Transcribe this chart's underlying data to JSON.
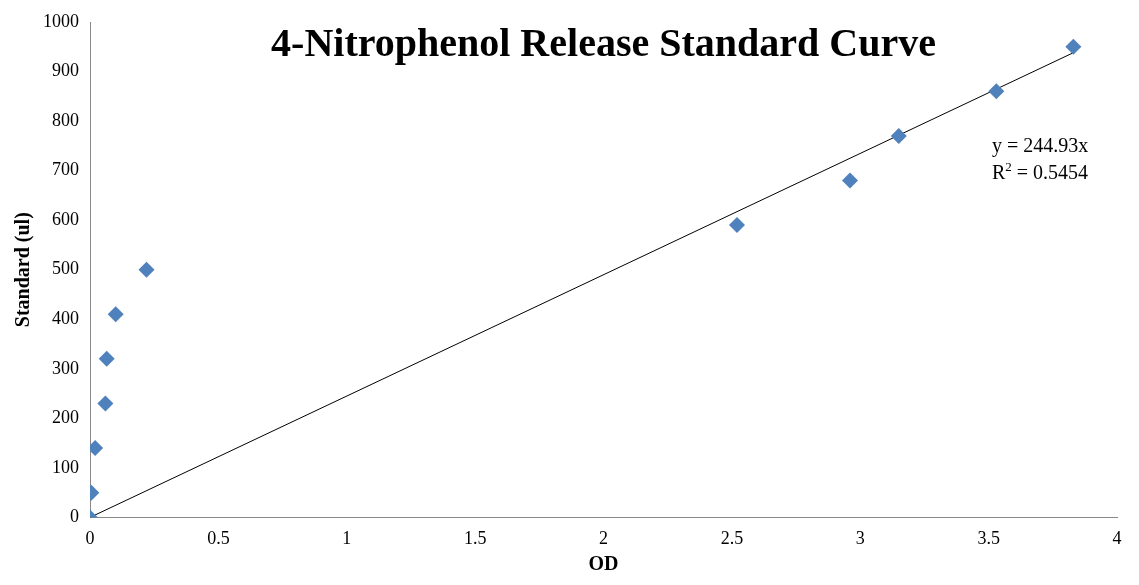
{
  "chart_data": {
    "type": "scatter",
    "title": "4-Nitrophenol Release Standard Curve",
    "xlabel": "OD",
    "ylabel": "Standard (ul)",
    "xlim": [
      0,
      4
    ],
    "xticks": [
      0,
      0.5,
      1,
      1.5,
      2,
      2.5,
      3,
      3.5,
      4
    ],
    "ylim": [
      0,
      1000
    ],
    "yticks": [
      0,
      100,
      200,
      300,
      400,
      500,
      600,
      700,
      800,
      900,
      1000
    ],
    "grid": false,
    "legend": false,
    "marker": "diamond",
    "series": [
      {
        "color": "#4f81bd",
        "x": [
          0,
          0.005,
          0.02,
          0.06,
          0.065,
          0.1,
          0.22,
          2.52,
          2.96,
          3.15,
          3.53,
          3.83
        ],
        "values": [
          0,
          50,
          140,
          230,
          320,
          410,
          500,
          590,
          680,
          770,
          860,
          950
        ]
      },
      {
        "type": "line",
        "color": "#000000",
        "marker": "none",
        "x": [
          0,
          3.83
        ],
        "values": [
          0,
          938
        ]
      }
    ],
    "annotations": [
      "y = 244.93x",
      "R$^{2}$ = 0.5454"
    ]
  }
}
